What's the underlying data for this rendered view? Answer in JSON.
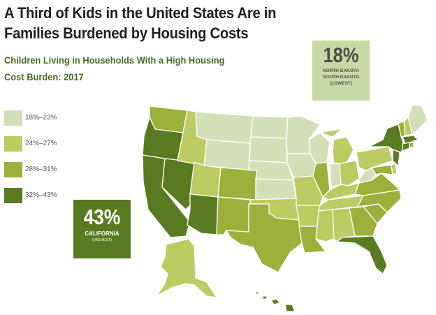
{
  "title": "A Third of Kids in the United States Are in Families Burdened by Housing Costs",
  "subtitle": "Children Living in Households With a High Housing Cost Burden: 2017",
  "colors": {
    "18-23": "#d3dfb6",
    "24-27": "#bccb62",
    "28-31": "#9bb13b",
    "32-43": "#587b22"
  },
  "legend": [
    {
      "label": "18%–23%",
      "class": "18-23"
    },
    {
      "label": "24%–27%",
      "class": "24-27"
    },
    {
      "label": "28%–31%",
      "class": "28-31"
    },
    {
      "label": "32%–43%",
      "class": "32-43"
    }
  ],
  "callouts": {
    "lowest": {
      "value": "18%",
      "states_line1": "NORTH DAKOTA",
      "states_line2": "SOUTH DAKOTA",
      "note": "(LOWEST)"
    },
    "highest": {
      "value": "43%",
      "state": "CALIFORNIA",
      "note": "(HIGHEST)"
    }
  },
  "states": {
    "WA": "28-31",
    "OR": "32-43",
    "CA": "32-43",
    "NV": "32-43",
    "ID": "24-27",
    "MT": "18-23",
    "WY": "18-23",
    "UT": "24-27",
    "AZ": "32-43",
    "CO": "28-31",
    "NM": "28-31",
    "ND": "18-23",
    "SD": "18-23",
    "NE": "18-23",
    "KS": "18-23",
    "OK": "24-27",
    "TX": "28-31",
    "MN": "18-23",
    "IA": "18-23",
    "MO": "24-27",
    "AR": "24-27",
    "LA": "28-31",
    "WI": "18-23",
    "IL": "28-31",
    "IN": "18-23",
    "MI": "24-27",
    "OH": "24-27",
    "KY": "24-27",
    "TN": "24-27",
    "MS": "24-27",
    "AL": "24-27",
    "GA": "28-31",
    "FL": "32-43",
    "SC": "28-31",
    "NC": "28-31",
    "VA": "28-31",
    "WV": "18-23",
    "PA": "24-27",
    "NY": "32-43",
    "VT": "28-31",
    "NH": "24-27",
    "ME": "18-23",
    "MA": "32-43",
    "CT": "32-43",
    "RI": "28-31",
    "NJ": "32-43",
    "DE": "24-27",
    "MD": "28-31",
    "AK": "24-27",
    "HI": "32-43"
  }
}
